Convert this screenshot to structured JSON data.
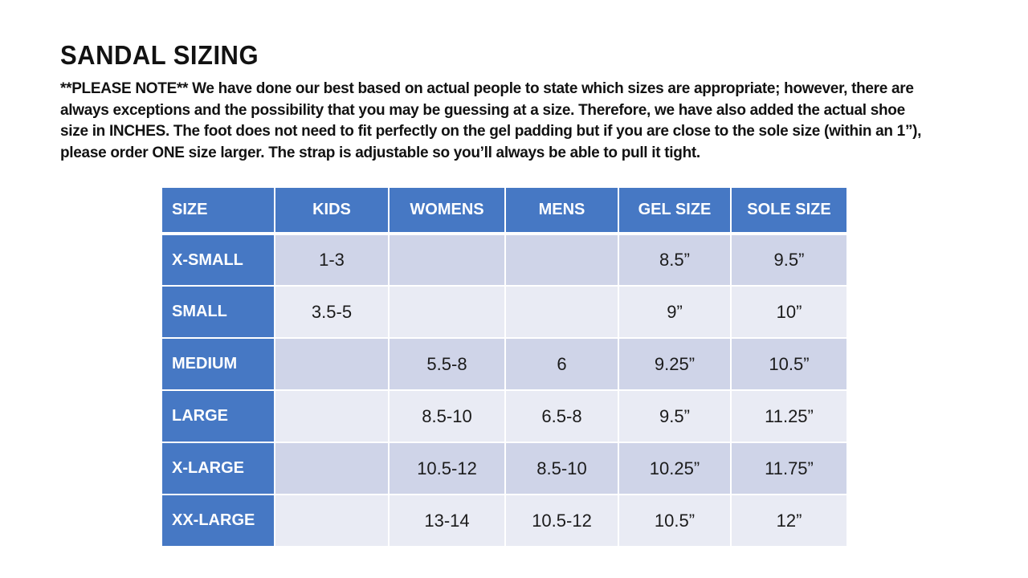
{
  "page": {
    "title": "SANDAL SIZING",
    "note_lines": [
      "**PLEASE NOTE**   We have done our best based on actual people to state which sizes are appropriate; however, there are",
      "always exceptions and the possibility that you may be guessing at a size.  Therefore, we have also added the actual shoe",
      "size in INCHES.  The foot does not need to fit perfectly on the gel padding but if you are close to the sole size (within an 1”),",
      "please order ONE size larger.  The strap is adjustable so you’ll always be able to pull it tight."
    ]
  },
  "colors": {
    "header_blue": "#4678c4",
    "band_dark": "#cfd4e8",
    "band_light": "#e9ebf4",
    "text_dark": "#1b1b1b",
    "text_white": "#ffffff"
  },
  "table": {
    "headers": [
      "SIZE",
      "KIDS",
      "WOMENS",
      "MENS",
      "GEL SIZE",
      "SOLE SIZE"
    ],
    "rows": [
      [
        "X-SMALL",
        "1-3",
        "",
        "",
        "8.5”",
        "9.5”"
      ],
      [
        "SMALL",
        "3.5-5",
        "",
        "",
        "9”",
        "10”"
      ],
      [
        "MEDIUM",
        "",
        "5.5-8",
        "6",
        "9.25”",
        "10.5”"
      ],
      [
        "LARGE",
        "",
        "8.5-10",
        "6.5-8",
        "9.5”",
        "11.25”"
      ],
      [
        "X-LARGE",
        "",
        "10.5-12",
        "8.5-10",
        "10.25”",
        "11.75”"
      ],
      [
        "XX-LARGE",
        "",
        "13-14",
        "10.5-12",
        "10.5”",
        "12”"
      ]
    ]
  }
}
